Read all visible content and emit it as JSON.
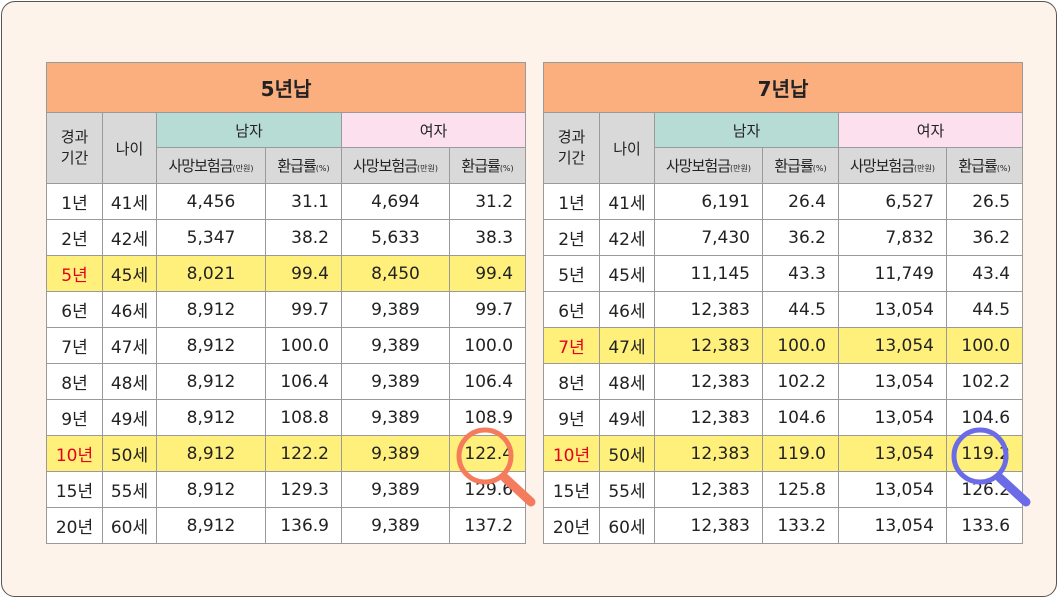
{
  "left": {
    "title": "5년납",
    "headers": {
      "period": "경과\n기간",
      "age": "나이",
      "male": "남자",
      "female": "여자",
      "death": "사망보험금",
      "death_unit": "(만원)",
      "refund": "환급률",
      "refund_unit": "(%)"
    },
    "rows": [
      {
        "period": "1년",
        "age": "41세",
        "m_death": "4,456",
        "m_rate": "31.1",
        "f_death": "4,694",
        "f_rate": "31.2"
      },
      {
        "period": "2년",
        "age": "42세",
        "m_death": "5,347",
        "m_rate": "38.2",
        "f_death": "5,633",
        "f_rate": "38.3"
      },
      {
        "period": "5년",
        "age": "45세",
        "m_death": "8,021",
        "m_rate": "99.4",
        "f_death": "8,450",
        "f_rate": "99.4"
      },
      {
        "period": "6년",
        "age": "46세",
        "m_death": "8,912",
        "m_rate": "99.7",
        "f_death": "9,389",
        "f_rate": "99.7"
      },
      {
        "period": "7년",
        "age": "47세",
        "m_death": "8,912",
        "m_rate": "100.0",
        "f_death": "9,389",
        "f_rate": "100.0"
      },
      {
        "period": "8년",
        "age": "48세",
        "m_death": "8,912",
        "m_rate": "106.4",
        "f_death": "9,389",
        "f_rate": "106.4"
      },
      {
        "period": "9년",
        "age": "49세",
        "m_death": "8,912",
        "m_rate": "108.8",
        "f_death": "9,389",
        "f_rate": "108.9"
      },
      {
        "period": "10년",
        "age": "50세",
        "m_death": "8,912",
        "m_rate": "122.2",
        "f_death": "9,389",
        "f_rate": "122.4"
      },
      {
        "period": "15년",
        "age": "55세",
        "m_death": "8,912",
        "m_rate": "129.3",
        "f_death": "9,389",
        "f_rate": "129.6"
      },
      {
        "period": "20년",
        "age": "60세",
        "m_death": "8,912",
        "m_rate": "136.9",
        "f_death": "9,389",
        "f_rate": "137.2"
      }
    ],
    "highlight_rows": [
      2,
      7
    ],
    "lens_color": "#f47c5c"
  },
  "right": {
    "title": "7년납",
    "headers": {
      "period": "경과\n기간",
      "age": "나이",
      "male": "남자",
      "female": "여자",
      "death": "사망보험금",
      "death_unit": "(만원)",
      "refund": "환급률",
      "refund_unit": "(%)"
    },
    "rows": [
      {
        "period": "1년",
        "age": "41세",
        "m_death": "6,191",
        "m_rate": "26.4",
        "f_death": "6,527",
        "f_rate": "26.5"
      },
      {
        "period": "2년",
        "age": "42세",
        "m_death": "7,430",
        "m_rate": "36.2",
        "f_death": "7,832",
        "f_rate": "36.2"
      },
      {
        "period": "5년",
        "age": "45세",
        "m_death": "11,145",
        "m_rate": "43.3",
        "f_death": "11,749",
        "f_rate": "43.4"
      },
      {
        "period": "6년",
        "age": "46세",
        "m_death": "12,383",
        "m_rate": "44.5",
        "f_death": "13,054",
        "f_rate": "44.5"
      },
      {
        "period": "7년",
        "age": "47세",
        "m_death": "12,383",
        "m_rate": "100.0",
        "f_death": "13,054",
        "f_rate": "100.0"
      },
      {
        "period": "8년",
        "age": "48세",
        "m_death": "12,383",
        "m_rate": "102.2",
        "f_death": "13,054",
        "f_rate": "102.2"
      },
      {
        "period": "9년",
        "age": "49세",
        "m_death": "12,383",
        "m_rate": "104.6",
        "f_death": "13,054",
        "f_rate": "104.6"
      },
      {
        "period": "10년",
        "age": "50세",
        "m_death": "12,383",
        "m_rate": "119.0",
        "f_death": "13,054",
        "f_rate": "119.2"
      },
      {
        "period": "15년",
        "age": "55세",
        "m_death": "12,383",
        "m_rate": "125.8",
        "f_death": "13,054",
        "f_rate": "126.2"
      },
      {
        "period": "20년",
        "age": "60세",
        "m_death": "12,383",
        "m_rate": "133.2",
        "f_death": "13,054",
        "f_rate": "133.6"
      }
    ],
    "highlight_rows": [
      4,
      7
    ],
    "lens_color": "#6b6be8"
  },
  "colors": {
    "title_bg": "#fbae7e",
    "male_bg": "#b7dcd6",
    "female_bg": "#fde0ee",
    "header_bg": "#d9d9d9",
    "highlight_bg": "#fff07c",
    "highlight_text": "#e5001b"
  },
  "icons": [
    "magnifier-icon"
  ]
}
